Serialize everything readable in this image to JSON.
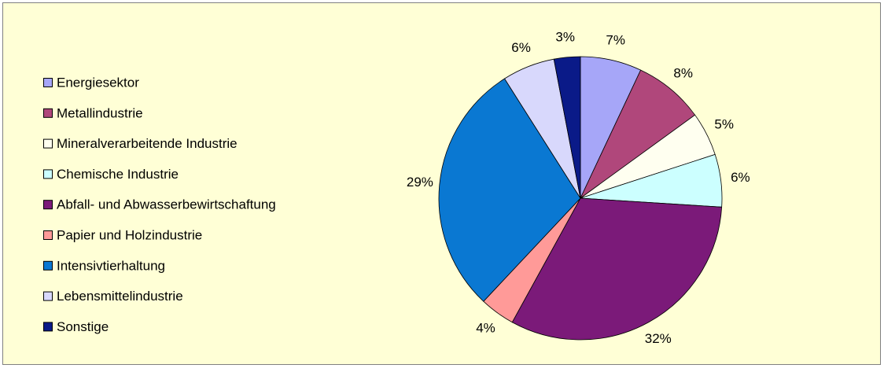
{
  "chart_data": {
    "type": "pie",
    "categories": [
      "Energiesektor",
      "Metallindustrie",
      "Mineralverarbeitende Industrie",
      "Chemische Industrie",
      "Abfall- und Abwasserbewirtschaftung",
      "Papier und Holzindustrie",
      "Intensivtierhaltung",
      "Lebensmittelindustrie",
      "Sonstige"
    ],
    "values": [
      7,
      8,
      5,
      6,
      32,
      4,
      29,
      6,
      3
    ],
    "value_labels": [
      "7%",
      "8%",
      "5%",
      "6%",
      "32%",
      "4%",
      "29%",
      "6%",
      "3%"
    ],
    "colors": [
      "#a6a6f8",
      "#b0477b",
      "#fffff0",
      "#ccffff",
      "#7b1a79",
      "#ff9a98",
      "#0a78d2",
      "#d8d8fc",
      "#0a1a88"
    ],
    "legend": "left"
  }
}
